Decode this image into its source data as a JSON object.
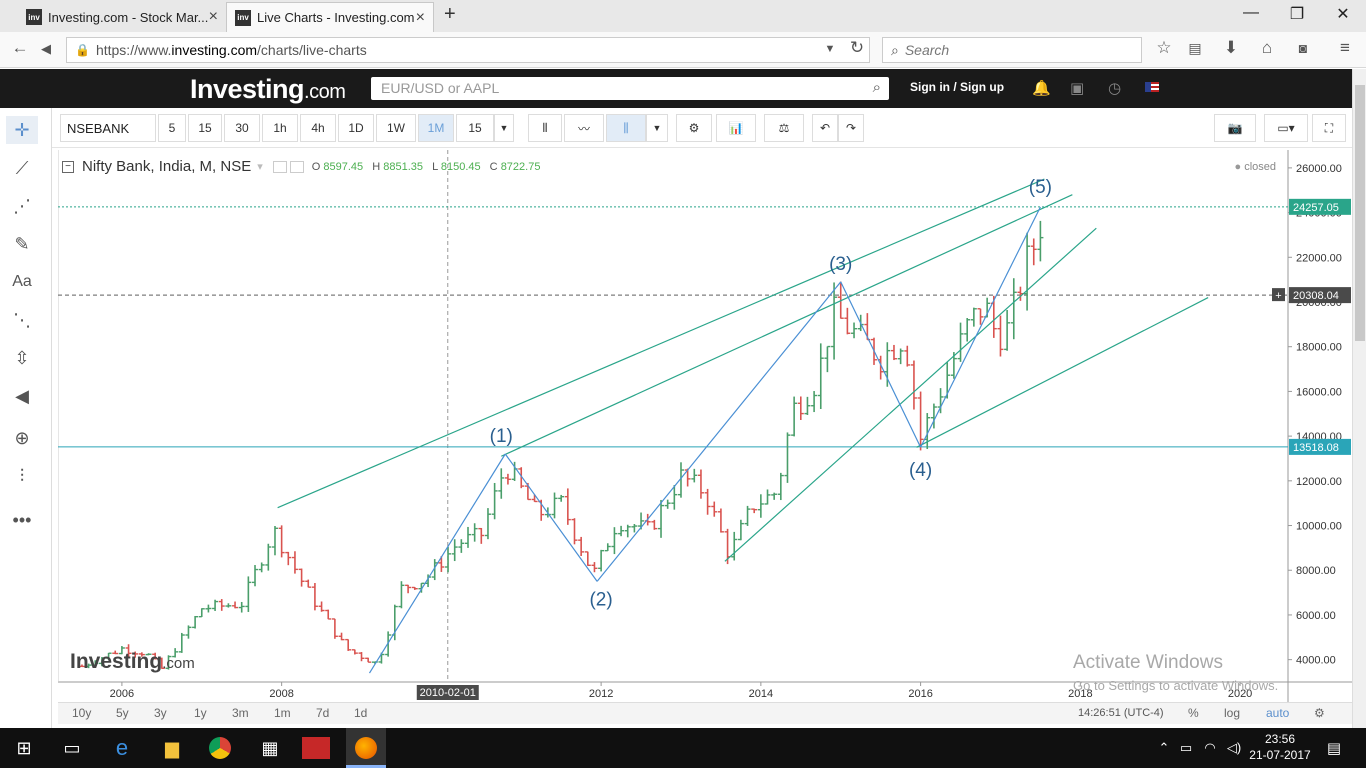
{
  "browser": {
    "tabs": [
      {
        "label": "Investing.com - Stock Mar...",
        "favicon": "inv"
      },
      {
        "label": "Live Charts - Investing.com",
        "favicon": "inv"
      }
    ],
    "new_tab": "+",
    "url": {
      "prefix": "https://www.",
      "host": "investing.com",
      "path": "/charts/live-charts"
    },
    "search_placeholder": "Search",
    "window_controls": {
      "min": "—",
      "max": "❐",
      "close": "✕"
    }
  },
  "site": {
    "logo": "Investing",
    "logo_suffix": ".com",
    "search_placeholder": "EUR/USD or AAPL",
    "sign_in": "Sign in",
    "separator": "/",
    "sign_up": "Sign up"
  },
  "toolbar": {
    "symbol": "NSEBANK",
    "intervals": [
      "5",
      "15",
      "30",
      "1h",
      "4h",
      "1D",
      "1W",
      "1M",
      "15"
    ],
    "selected_interval": "1M"
  },
  "chart_header": {
    "title": "Nifty Bank, India, M, NSE",
    "o_label": "O",
    "o": "8597.45",
    "h_label": "H",
    "h": "8851.35",
    "l_label": "L",
    "l": "8150.45",
    "c_label": "C",
    "c": "8722.75",
    "status": "closed"
  },
  "watermark": {
    "brand": "Investing",
    "suffix": ".com"
  },
  "activate_windows": {
    "line1": "Activate Windows",
    "line2": "Go to Settings to activate Windows."
  },
  "ranges": [
    "10y",
    "5y",
    "3y",
    "1y",
    "3m",
    "1m",
    "7d",
    "1d"
  ],
  "footer": {
    "time": "14:26:51 (UTC-4)",
    "percent": "%",
    "log": "log",
    "auto": "auto"
  },
  "taskbar": {
    "time": "23:56",
    "date": "21-07-2017"
  },
  "colors": {
    "up": "#4a9e6a",
    "down": "#d9534f",
    "trendline": "#2aa58a",
    "wave": "#4a8fd4",
    "crosshair": "#999999"
  },
  "chart_data": {
    "type": "ohlc",
    "symbol": "NSEBANK",
    "interval": "M",
    "xlim": [
      2005.2,
      2020.6
    ],
    "ylim": [
      3000,
      26800
    ],
    "x_ticks": [
      "2006",
      "2008",
      "2012",
      "2014",
      "2016",
      "2018",
      "2020"
    ],
    "crosshair_x_label": "2010-02-01",
    "y_ticks": [
      4000,
      6000,
      8000,
      10000,
      12000,
      14000,
      16000,
      18000,
      20000,
      22000,
      24000,
      26000
    ],
    "price_labels": [
      {
        "value": 24257.05,
        "label": "24257.05"
      },
      {
        "value": 20308.04,
        "label": "20308.04"
      },
      {
        "value": 13518.08,
        "label": "13518.08"
      }
    ],
    "wave_labels": [
      {
        "label": "(1)",
        "x": 2010.75,
        "y": 13100
      },
      {
        "label": "(2)",
        "x": 2012.0,
        "y": 7500
      },
      {
        "label": "(3)",
        "x": 2015.0,
        "y": 20800
      },
      {
        "label": "(4)",
        "x": 2016.0,
        "y": 13300
      },
      {
        "label": "(5)",
        "x": 2017.5,
        "y": 24257
      }
    ],
    "anchor_prices": [
      [
        2005.5,
        3700
      ],
      [
        2006.0,
        4500
      ],
      [
        2006.3,
        4300
      ],
      [
        2006.5,
        3600
      ],
      [
        2007.0,
        6300
      ],
      [
        2007.5,
        6500
      ],
      [
        2007.9,
        9800
      ],
      [
        2008.3,
        7200
      ],
      [
        2008.8,
        4500
      ],
      [
        2009.2,
        3800
      ],
      [
        2009.5,
        7200
      ],
      [
        2009.8,
        7600
      ],
      [
        2010.2,
        9200
      ],
      [
        2010.5,
        9600
      ],
      [
        2010.8,
        12700
      ],
      [
        2011.2,
        10500
      ],
      [
        2011.5,
        11000
      ],
      [
        2011.9,
        7800
      ],
      [
        2012.2,
        10200
      ],
      [
        2012.6,
        9800
      ],
      [
        2013.0,
        12200
      ],
      [
        2013.3,
        11500
      ],
      [
        2013.6,
        8700
      ],
      [
        2013.9,
        10900
      ],
      [
        2014.2,
        11500
      ],
      [
        2014.4,
        15200
      ],
      [
        2014.7,
        16500
      ],
      [
        2014.9,
        19500
      ],
      [
        2015.2,
        18500
      ],
      [
        2015.5,
        17500
      ],
      [
        2015.8,
        18500
      ],
      [
        2016.0,
        13900
      ],
      [
        2016.3,
        16500
      ],
      [
        2016.6,
        19000
      ],
      [
        2016.8,
        19900
      ],
      [
        2016.95,
        18500
      ],
      [
        2017.1,
        18800
      ],
      [
        2017.3,
        21500
      ],
      [
        2017.45,
        22800
      ],
      [
        2017.55,
        24200
      ]
    ],
    "wave_lines": [
      [
        [
          2009.1,
          3400
        ],
        [
          2010.8,
          13200
        ]
      ],
      [
        [
          2010.8,
          13200
        ],
        [
          2011.95,
          7500
        ]
      ],
      [
        [
          2011.95,
          7500
        ],
        [
          2015.0,
          20900
        ]
      ],
      [
        [
          2015.0,
          20900
        ],
        [
          2016.0,
          13500
        ]
      ],
      [
        [
          2016.0,
          13500
        ],
        [
          2017.5,
          24250
        ]
      ]
    ],
    "trend_lines": [
      [
        [
          2007.95,
          10800
        ],
        [
          2017.55,
          25500
        ]
      ],
      [
        [
          2010.75,
          13100
        ],
        [
          2017.9,
          24800
        ]
      ],
      [
        [
          2013.55,
          8400
        ],
        [
          2018.2,
          23300
        ]
      ],
      [
        [
          2015.95,
          13500
        ],
        [
          2019.6,
          20200
        ]
      ]
    ]
  }
}
